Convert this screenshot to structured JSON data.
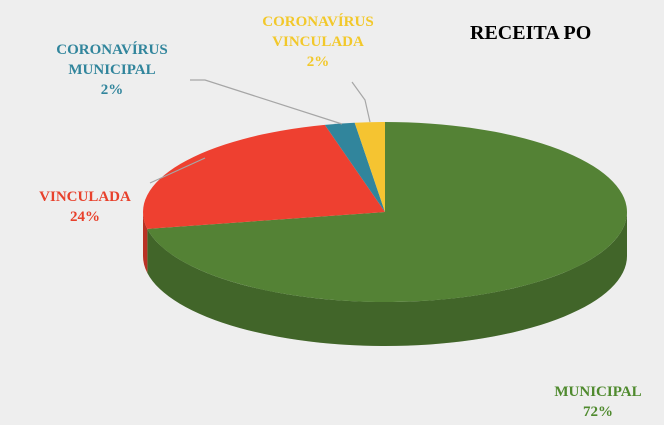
{
  "chart_data": {
    "type": "pie",
    "title": "RECEITA PO",
    "categories": [
      "MUNICIPAL",
      "VINCULADA",
      "CORONAVÍRUS MUNICIPAL",
      "CORONAVÍRUS VINCULADA"
    ],
    "values": [
      72,
      24,
      2,
      2
    ],
    "value_labels": [
      "72%",
      "24%",
      "2%",
      "2%"
    ],
    "colors": [
      "#548235",
      "#ee4030",
      "#31859c",
      "#f5c431"
    ]
  }
}
